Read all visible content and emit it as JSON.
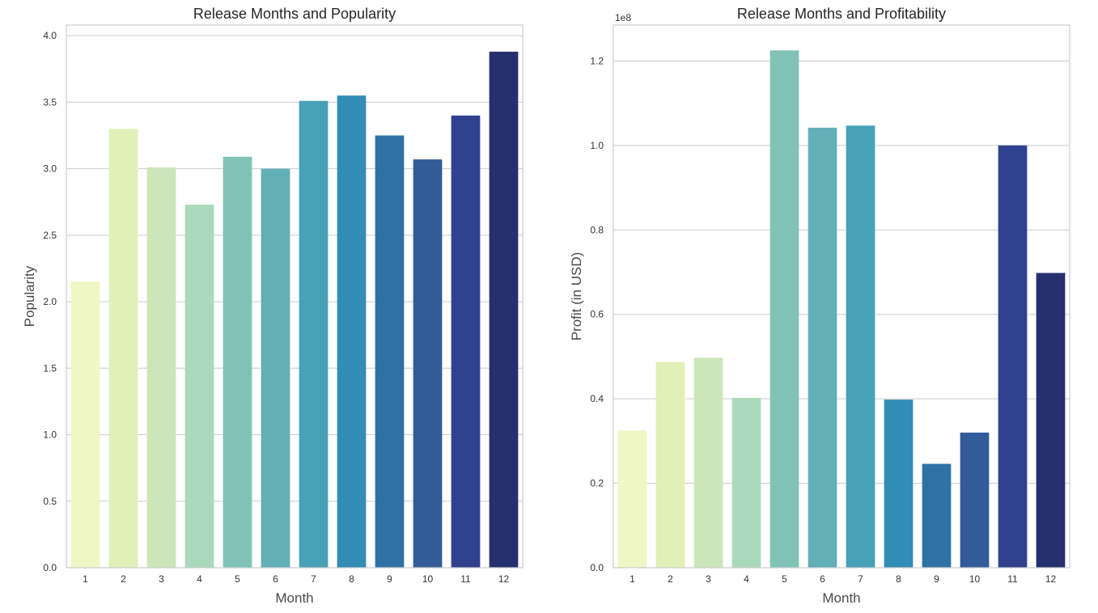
{
  "colors": {
    "grid": "#cccccc",
    "frame": "#cccccc",
    "text": "#262626",
    "palette": [
      "#eff7c4",
      "#e0f0b7",
      "#cde6b9",
      "#abd9bb",
      "#80c3b6",
      "#62afb8",
      "#47a1b7",
      "#338cb6",
      "#2e72a5",
      "#325b9a",
      "#30418f",
      "#26306e"
    ]
  },
  "chart_data": [
    {
      "type": "bar",
      "title": "Release Months and Popularity",
      "xlabel": "Month",
      "ylabel": "Popularity",
      "categories": [
        "1",
        "2",
        "3",
        "4",
        "5",
        "6",
        "7",
        "8",
        "9",
        "10",
        "11",
        "12"
      ],
      "values": [
        2.15,
        3.3,
        3.01,
        2.73,
        3.09,
        3.0,
        3.51,
        3.55,
        3.25,
        3.07,
        3.4,
        3.88
      ],
      "ylim": [
        0,
        4.08
      ],
      "yticks": [
        "0.0",
        "0.5",
        "1.0",
        "1.5",
        "2.0",
        "2.5",
        "3.0",
        "3.5",
        "4.0"
      ],
      "offset_label": "",
      "grid": "horizontal"
    },
    {
      "type": "bar",
      "title": "Release Months and Profitability",
      "xlabel": "Month",
      "ylabel": "Profit (in USD)",
      "categories": [
        "1",
        "2",
        "3",
        "4",
        "5",
        "6",
        "7",
        "8",
        "9",
        "10",
        "11",
        "12"
      ],
      "values": [
        32500000,
        48700000,
        49700000,
        40200000,
        122500000,
        104200000,
        104700000,
        39800000,
        24600000,
        32000000,
        100000000,
        69800000
      ],
      "ylim": [
        0,
        128500000
      ],
      "yticks": [
        "0.0",
        "0.2",
        "0.4",
        "0.6",
        "0.8",
        "1.0",
        "1.2"
      ],
      "tick_scale": 100000000,
      "offset_label": "1e8",
      "grid": "horizontal"
    }
  ]
}
